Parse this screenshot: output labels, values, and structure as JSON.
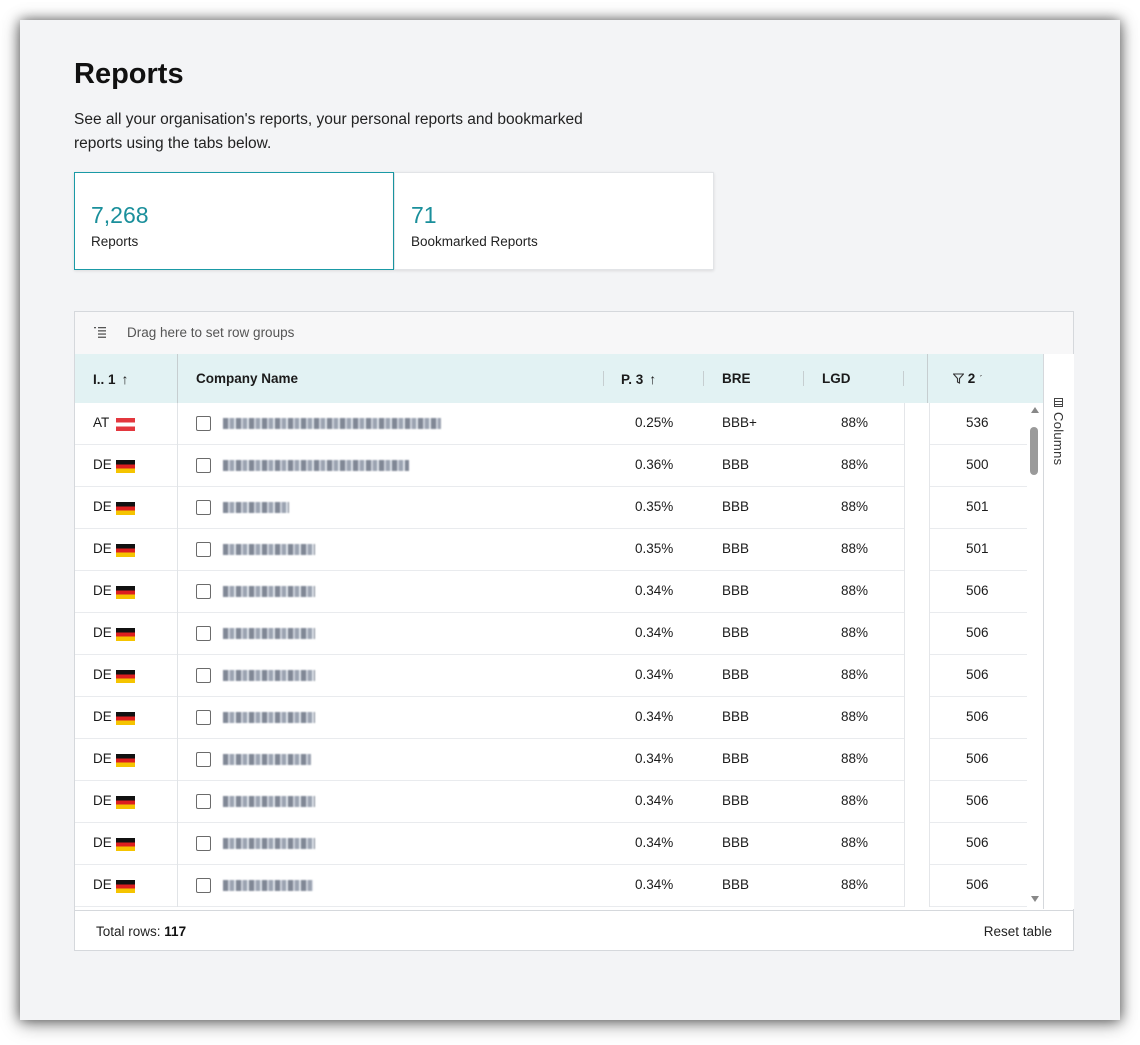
{
  "page": {
    "title": "Reports",
    "description": "See all your organisation's reports, your personal reports and bookmarked reports using the tabs below."
  },
  "cards": [
    {
      "value": "7,268",
      "label": "Reports",
      "active": true
    },
    {
      "value": "71",
      "label": "Bookmarked Reports",
      "active": false
    }
  ],
  "grid": {
    "group_bar": {
      "icon": "row-group-icon",
      "placeholder": "Drag here to set row groups"
    },
    "columns": {
      "col_country": {
        "label": "I..",
        "sort_index": "1",
        "sort": "ascending"
      },
      "col_company": {
        "label": "Company Name"
      },
      "col_pd": {
        "label": "P.",
        "sort_index": "3",
        "sort": "ascending"
      },
      "col_bre": {
        "label": "BRE"
      },
      "col_lgd": {
        "label": "LGD"
      },
      "col_last": {
        "label": "",
        "sort_index": "2",
        "filter": true
      }
    },
    "side_panel": {
      "columns_label": "Columns",
      "icon": "columns-icon"
    },
    "rows": [
      {
        "country": "AT",
        "flag": "at",
        "pd": "0.25%",
        "bre": "BBB+",
        "lgd": "88%",
        "value": "536"
      },
      {
        "country": "DE",
        "flag": "de",
        "pd": "0.36%",
        "bre": "BBB",
        "lgd": "88%",
        "value": "500"
      },
      {
        "country": "DE",
        "flag": "de",
        "pd": "0.35%",
        "bre": "BBB",
        "lgd": "88%",
        "value": "501"
      },
      {
        "country": "DE",
        "flag": "de",
        "pd": "0.35%",
        "bre": "BBB",
        "lgd": "88%",
        "value": "501"
      },
      {
        "country": "DE",
        "flag": "de",
        "pd": "0.34%",
        "bre": "BBB",
        "lgd": "88%",
        "value": "506"
      },
      {
        "country": "DE",
        "flag": "de",
        "pd": "0.34%",
        "bre": "BBB",
        "lgd": "88%",
        "value": "506"
      },
      {
        "country": "DE",
        "flag": "de",
        "pd": "0.34%",
        "bre": "BBB",
        "lgd": "88%",
        "value": "506"
      },
      {
        "country": "DE",
        "flag": "de",
        "pd": "0.34%",
        "bre": "BBB",
        "lgd": "88%",
        "value": "506"
      },
      {
        "country": "DE",
        "flag": "de",
        "pd": "0.34%",
        "bre": "BBB",
        "lgd": "88%",
        "value": "506"
      },
      {
        "country": "DE",
        "flag": "de",
        "pd": "0.34%",
        "bre": "BBB",
        "lgd": "88%",
        "value": "506"
      },
      {
        "country": "DE",
        "flag": "de",
        "pd": "0.34%",
        "bre": "BBB",
        "lgd": "88%",
        "value": "506"
      },
      {
        "country": "DE",
        "flag": "de",
        "pd": "0.34%",
        "bre": "BBB",
        "lgd": "88%",
        "value": "506"
      }
    ],
    "footer": {
      "total_label": "Total rows:",
      "total_value": "117",
      "reset_label": "Reset table"
    }
  },
  "colors": {
    "accent": "#1a8f9b",
    "header_bg": "#e2f2f3",
    "page_bg": "#f3f4f6"
  }
}
